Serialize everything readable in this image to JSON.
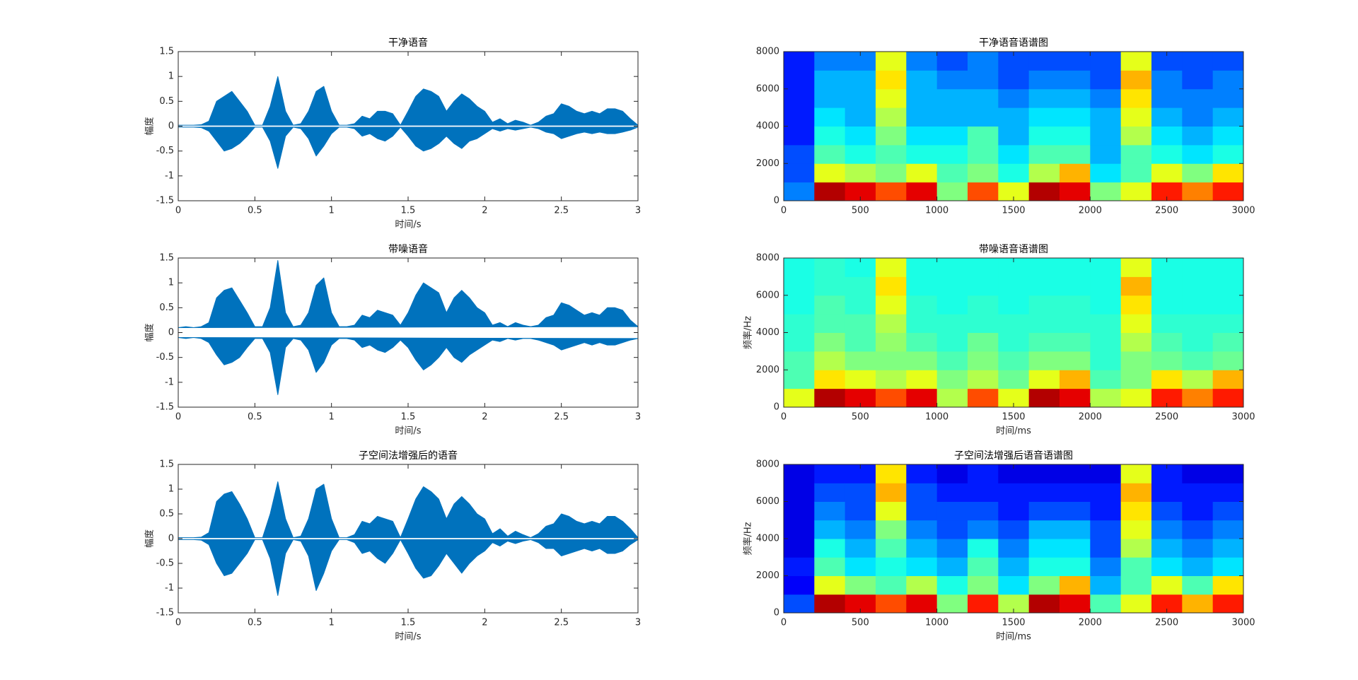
{
  "chart_data": [
    {
      "type": "area",
      "title": "干净语音",
      "xlabel": "时间/s",
      "ylabel": "幅度",
      "x": [
        0,
        0.05,
        0.1,
        0.15,
        0.2,
        0.25,
        0.3,
        0.35,
        0.4,
        0.45,
        0.5,
        0.55,
        0.6,
        0.65,
        0.7,
        0.75,
        0.8,
        0.85,
        0.9,
        0.95,
        1,
        1.05,
        1.1,
        1.15,
        1.2,
        1.25,
        1.3,
        1.35,
        1.4,
        1.45,
        1.5,
        1.55,
        1.6,
        1.65,
        1.7,
        1.75,
        1.8,
        1.85,
        1.9,
        1.95,
        2,
        2.05,
        2.1,
        2.15,
        2.2,
        2.25,
        2.3,
        2.35,
        2.4,
        2.45,
        2.5,
        2.55,
        2.6,
        2.65,
        2.7,
        2.75,
        2.8,
        2.85,
        2.9,
        2.95,
        3
      ],
      "series": [
        {
          "color": "#0072bd",
          "values": [
            0.02,
            0.02,
            0.02,
            0.03,
            0.1,
            0.5,
            0.6,
            0.7,
            0.5,
            0.3,
            0.02,
            0.02,
            0.4,
            1.0,
            0.3,
            0.02,
            0.05,
            0.3,
            0.7,
            0.8,
            0.3,
            0.02,
            0.02,
            0.05,
            0.2,
            0.15,
            0.3,
            0.3,
            0.25,
            0.02,
            0.3,
            0.6,
            0.75,
            0.7,
            0.6,
            0.3,
            0.5,
            0.65,
            0.55,
            0.4,
            0.3,
            0.08,
            0.15,
            0.05,
            0.12,
            0.08,
            0.02,
            0.08,
            0.2,
            0.25,
            0.45,
            0.4,
            0.3,
            0.25,
            0.3,
            0.25,
            0.35,
            0.35,
            0.3,
            0.15,
            0.02
          ]
        },
        {
          "color": "#0072bd",
          "values": [
            -0.02,
            -0.02,
            -0.02,
            -0.03,
            -0.1,
            -0.3,
            -0.5,
            -0.45,
            -0.35,
            -0.2,
            -0.02,
            -0.02,
            -0.3,
            -0.85,
            -0.2,
            -0.02,
            -0.05,
            -0.25,
            -0.6,
            -0.4,
            -0.15,
            -0.02,
            -0.02,
            -0.05,
            -0.2,
            -0.15,
            -0.25,
            -0.3,
            -0.2,
            -0.02,
            -0.2,
            -0.4,
            -0.5,
            -0.45,
            -0.35,
            -0.2,
            -0.35,
            -0.45,
            -0.3,
            -0.25,
            -0.15,
            -0.05,
            -0.1,
            -0.05,
            -0.08,
            -0.05,
            -0.02,
            -0.05,
            -0.12,
            -0.15,
            -0.25,
            -0.2,
            -0.15,
            -0.12,
            -0.15,
            -0.12,
            -0.15,
            -0.15,
            -0.12,
            -0.08,
            -0.02
          ]
        }
      ],
      "xlim": [
        0,
        3
      ],
      "xticks": [
        0,
        0.5,
        1,
        1.5,
        2,
        2.5,
        3
      ],
      "ylim": [
        -1.5,
        1.5
      ],
      "yticks": [
        -1.5,
        -1,
        -0.5,
        0,
        0.5,
        1,
        1.5
      ]
    },
    {
      "type": "heatmap",
      "title": "干净语音语谱图",
      "colormap": "jet",
      "x": [
        100,
        300,
        500,
        700,
        900,
        1100,
        1300,
        1500,
        1700,
        1900,
        2100,
        2300,
        2500,
        2700,
        2900
      ],
      "y": [
        500,
        1500,
        2500,
        3500,
        4500,
        5500,
        6500,
        7500
      ],
      "values": [
        [
          0.25,
          0.2,
          0.2,
          0.15,
          0.15,
          0.15,
          0.15,
          0.15
        ],
        [
          0.95,
          0.6,
          0.45,
          0.4,
          0.35,
          0.3,
          0.3,
          0.25
        ],
        [
          0.9,
          0.55,
          0.4,
          0.35,
          0.3,
          0.3,
          0.3,
          0.25
        ],
        [
          0.8,
          0.5,
          0.45,
          0.5,
          0.55,
          0.6,
          0.65,
          0.6
        ],
        [
          0.9,
          0.6,
          0.4,
          0.35,
          0.3,
          0.3,
          0.3,
          0.25
        ],
        [
          0.5,
          0.45,
          0.4,
          0.35,
          0.3,
          0.3,
          0.25,
          0.2
        ],
        [
          0.8,
          0.5,
          0.45,
          0.45,
          0.3,
          0.3,
          0.25,
          0.25
        ],
        [
          0.6,
          0.4,
          0.35,
          0.3,
          0.3,
          0.25,
          0.2,
          0.2
        ],
        [
          0.95,
          0.55,
          0.45,
          0.4,
          0.35,
          0.3,
          0.25,
          0.2
        ],
        [
          0.9,
          0.7,
          0.45,
          0.4,
          0.35,
          0.3,
          0.25,
          0.2
        ],
        [
          0.5,
          0.35,
          0.3,
          0.3,
          0.3,
          0.25,
          0.2,
          0.2
        ],
        [
          0.6,
          0.45,
          0.45,
          0.55,
          0.6,
          0.65,
          0.7,
          0.6
        ],
        [
          0.85,
          0.6,
          0.4,
          0.35,
          0.3,
          0.25,
          0.25,
          0.2
        ],
        [
          0.75,
          0.5,
          0.35,
          0.3,
          0.25,
          0.25,
          0.2,
          0.2
        ],
        [
          0.85,
          0.65,
          0.4,
          0.35,
          0.3,
          0.25,
          0.25,
          0.2
        ]
      ],
      "xlim": [
        0,
        3000
      ],
      "xticks": [
        0,
        500,
        1000,
        1500,
        2000,
        2500,
        3000
      ],
      "ylim": [
        0,
        8000
      ],
      "yticks": [
        0,
        2000,
        4000,
        6000,
        8000
      ]
    },
    {
      "type": "area",
      "title": "带噪语音",
      "xlabel": "时间/s",
      "ylabel": "幅度",
      "x": [
        0,
        0.05,
        0.1,
        0.15,
        0.2,
        0.25,
        0.3,
        0.35,
        0.4,
        0.45,
        0.5,
        0.55,
        0.6,
        0.65,
        0.7,
        0.75,
        0.8,
        0.85,
        0.9,
        0.95,
        1,
        1.05,
        1.1,
        1.15,
        1.2,
        1.25,
        1.3,
        1.35,
        1.4,
        1.45,
        1.5,
        1.55,
        1.6,
        1.65,
        1.7,
        1.75,
        1.8,
        1.85,
        1.9,
        1.95,
        2,
        2.05,
        2.1,
        2.15,
        2.2,
        2.25,
        2.3,
        2.35,
        2.4,
        2.45,
        2.5,
        2.55,
        2.6,
        2.65,
        2.7,
        2.75,
        2.8,
        2.85,
        2.9,
        2.95,
        3
      ],
      "series": [
        {
          "color": "#0072bd",
          "values": [
            0.1,
            0.12,
            0.1,
            0.12,
            0.2,
            0.7,
            0.85,
            0.9,
            0.65,
            0.4,
            0.12,
            0.12,
            0.5,
            1.45,
            0.4,
            0.12,
            0.15,
            0.4,
            0.95,
            1.1,
            0.4,
            0.12,
            0.12,
            0.15,
            0.35,
            0.3,
            0.45,
            0.4,
            0.35,
            0.15,
            0.4,
            0.75,
            1.0,
            0.9,
            0.8,
            0.4,
            0.7,
            0.85,
            0.7,
            0.5,
            0.4,
            0.15,
            0.2,
            0.12,
            0.2,
            0.15,
            0.12,
            0.15,
            0.3,
            0.35,
            0.6,
            0.55,
            0.45,
            0.35,
            0.4,
            0.35,
            0.5,
            0.5,
            0.45,
            0.25,
            0.12
          ]
        },
        {
          "color": "#0072bd",
          "values": [
            -0.1,
            -0.12,
            -0.1,
            -0.12,
            -0.2,
            -0.45,
            -0.65,
            -0.6,
            -0.5,
            -0.3,
            -0.12,
            -0.12,
            -0.4,
            -1.25,
            -0.3,
            -0.12,
            -0.15,
            -0.35,
            -0.8,
            -0.6,
            -0.25,
            -0.12,
            -0.12,
            -0.15,
            -0.3,
            -0.25,
            -0.35,
            -0.4,
            -0.3,
            -0.15,
            -0.3,
            -0.55,
            -0.75,
            -0.65,
            -0.5,
            -0.3,
            -0.5,
            -0.6,
            -0.45,
            -0.35,
            -0.25,
            -0.15,
            -0.18,
            -0.12,
            -0.15,
            -0.12,
            -0.12,
            -0.15,
            -0.2,
            -0.25,
            -0.35,
            -0.3,
            -0.25,
            -0.2,
            -0.25,
            -0.2,
            -0.25,
            -0.25,
            -0.2,
            -0.15,
            -0.12
          ]
        }
      ],
      "xlim": [
        0,
        3
      ],
      "xticks": [
        0,
        0.5,
        1,
        1.5,
        2,
        2.5,
        3
      ],
      "ylim": [
        -1.5,
        1.5
      ],
      "yticks": [
        -1.5,
        -1,
        -0.5,
        0,
        0.5,
        1,
        1.5
      ]
    },
    {
      "type": "heatmap",
      "title": "带噪语音语谱图",
      "xlabel": "时间/ms",
      "ylabel": "频率/Hz",
      "colormap": "jet",
      "x": [
        100,
        300,
        500,
        700,
        900,
        1100,
        1300,
        1500,
        1700,
        1900,
        2100,
        2300,
        2500,
        2700,
        2900
      ],
      "y": [
        500,
        1500,
        2500,
        3500,
        4500,
        5500,
        6500,
        7500
      ],
      "values": [
        [
          0.6,
          0.45,
          0.45,
          0.42,
          0.42,
          0.4,
          0.4,
          0.4
        ],
        [
          0.95,
          0.65,
          0.55,
          0.5,
          0.45,
          0.45,
          0.42,
          0.42
        ],
        [
          0.9,
          0.6,
          0.5,
          0.45,
          0.45,
          0.42,
          0.42,
          0.4
        ],
        [
          0.8,
          0.55,
          0.5,
          0.52,
          0.55,
          0.6,
          0.65,
          0.6
        ],
        [
          0.9,
          0.6,
          0.5,
          0.45,
          0.42,
          0.42,
          0.4,
          0.4
        ],
        [
          0.55,
          0.5,
          0.45,
          0.42,
          0.42,
          0.4,
          0.4,
          0.4
        ],
        [
          0.8,
          0.55,
          0.5,
          0.48,
          0.42,
          0.42,
          0.4,
          0.4
        ],
        [
          0.6,
          0.48,
          0.45,
          0.42,
          0.42,
          0.4,
          0.4,
          0.4
        ],
        [
          0.95,
          0.6,
          0.5,
          0.45,
          0.42,
          0.42,
          0.4,
          0.4
        ],
        [
          0.9,
          0.7,
          0.5,
          0.45,
          0.42,
          0.42,
          0.4,
          0.4
        ],
        [
          0.55,
          0.45,
          0.42,
          0.42,
          0.42,
          0.4,
          0.4,
          0.4
        ],
        [
          0.6,
          0.5,
          0.5,
          0.55,
          0.6,
          0.65,
          0.7,
          0.6
        ],
        [
          0.85,
          0.65,
          0.48,
          0.45,
          0.42,
          0.4,
          0.4,
          0.4
        ],
        [
          0.75,
          0.55,
          0.45,
          0.42,
          0.42,
          0.4,
          0.4,
          0.4
        ],
        [
          0.85,
          0.7,
          0.48,
          0.45,
          0.42,
          0.4,
          0.4,
          0.4
        ]
      ],
      "xlim": [
        0,
        3000
      ],
      "xticks": [
        0,
        500,
        1000,
        1500,
        2000,
        2500,
        3000
      ],
      "ylim": [
        0,
        8000
      ],
      "yticks": [
        0,
        2000,
        4000,
        6000,
        8000
      ]
    },
    {
      "type": "area",
      "title": "子空间法增强后的语音",
      "xlabel": "时间/s",
      "ylabel": "幅度",
      "x": [
        0,
        0.05,
        0.1,
        0.15,
        0.2,
        0.25,
        0.3,
        0.35,
        0.4,
        0.45,
        0.5,
        0.55,
        0.6,
        0.65,
        0.7,
        0.75,
        0.8,
        0.85,
        0.9,
        0.95,
        1,
        1.05,
        1.1,
        1.15,
        1.2,
        1.25,
        1.3,
        1.35,
        1.4,
        1.45,
        1.5,
        1.55,
        1.6,
        1.65,
        1.7,
        1.75,
        1.8,
        1.85,
        1.9,
        1.95,
        2,
        2.05,
        2.1,
        2.15,
        2.2,
        2.25,
        2.3,
        2.35,
        2.4,
        2.45,
        2.5,
        2.55,
        2.6,
        2.65,
        2.7,
        2.75,
        2.8,
        2.85,
        2.9,
        2.95,
        3
      ],
      "series": [
        {
          "color": "#0072bd",
          "values": [
            0.02,
            0.02,
            0.02,
            0.03,
            0.12,
            0.75,
            0.9,
            0.95,
            0.7,
            0.4,
            0.02,
            0.02,
            0.5,
            1.15,
            0.4,
            0.02,
            0.05,
            0.4,
            1.0,
            1.1,
            0.4,
            0.02,
            0.02,
            0.08,
            0.35,
            0.3,
            0.45,
            0.4,
            0.35,
            0.02,
            0.4,
            0.8,
            1.05,
            0.95,
            0.8,
            0.4,
            0.7,
            0.85,
            0.7,
            0.5,
            0.4,
            0.1,
            0.2,
            0.05,
            0.15,
            0.08,
            0.02,
            0.1,
            0.25,
            0.3,
            0.5,
            0.45,
            0.35,
            0.3,
            0.35,
            0.3,
            0.45,
            0.45,
            0.35,
            0.2,
            0.02
          ]
        },
        {
          "color": "#0072bd",
          "values": [
            -0.02,
            -0.02,
            -0.02,
            -0.03,
            -0.12,
            -0.5,
            -0.75,
            -0.7,
            -0.5,
            -0.3,
            -0.02,
            -0.02,
            -0.4,
            -1.15,
            -0.3,
            -0.02,
            -0.05,
            -0.35,
            -1.05,
            -0.7,
            -0.25,
            -0.02,
            -0.02,
            -0.08,
            -0.3,
            -0.25,
            -0.4,
            -0.5,
            -0.3,
            -0.02,
            -0.3,
            -0.6,
            -0.8,
            -0.75,
            -0.55,
            -0.3,
            -0.5,
            -0.7,
            -0.5,
            -0.35,
            -0.25,
            -0.08,
            -0.15,
            -0.05,
            -0.1,
            -0.05,
            -0.02,
            -0.08,
            -0.2,
            -0.2,
            -0.35,
            -0.3,
            -0.25,
            -0.2,
            -0.25,
            -0.2,
            -0.3,
            -0.3,
            -0.25,
            -0.12,
            -0.02
          ]
        }
      ],
      "xlim": [
        0,
        3
      ],
      "xticks": [
        0,
        0.5,
        1,
        1.5,
        2,
        2.5,
        3
      ],
      "ylim": [
        -1.5,
        1.5
      ],
      "yticks": [
        -1.5,
        -1,
        -0.5,
        0,
        0.5,
        1,
        1.5
      ]
    },
    {
      "type": "heatmap",
      "title": "子空间法增强后语音语谱图",
      "xlabel": "时间/ms",
      "ylabel": "频率/Hz",
      "colormap": "jet",
      "x": [
        100,
        300,
        500,
        700,
        900,
        1100,
        1300,
        1500,
        1700,
        1900,
        2100,
        2300,
        2500,
        2700,
        2900
      ],
      "y": [
        500,
        1500,
        2500,
        3500,
        4500,
        5500,
        6500,
        7500
      ],
      "values": [
        [
          0.2,
          0.12,
          0.15,
          0.1,
          0.1,
          0.1,
          0.1,
          0.1
        ],
        [
          0.95,
          0.6,
          0.45,
          0.4,
          0.3,
          0.25,
          0.2,
          0.15
        ],
        [
          0.9,
          0.5,
          0.35,
          0.3,
          0.25,
          0.2,
          0.2,
          0.15
        ],
        [
          0.8,
          0.45,
          0.4,
          0.45,
          0.5,
          0.6,
          0.7,
          0.65
        ],
        [
          0.9,
          0.55,
          0.35,
          0.3,
          0.25,
          0.2,
          0.2,
          0.15
        ],
        [
          0.5,
          0.4,
          0.3,
          0.25,
          0.2,
          0.2,
          0.15,
          0.1
        ],
        [
          0.85,
          0.5,
          0.45,
          0.4,
          0.25,
          0.2,
          0.15,
          0.15
        ],
        [
          0.55,
          0.35,
          0.3,
          0.25,
          0.2,
          0.15,
          0.15,
          0.1
        ],
        [
          0.95,
          0.5,
          0.4,
          0.35,
          0.3,
          0.2,
          0.15,
          0.1
        ],
        [
          0.9,
          0.7,
          0.4,
          0.35,
          0.3,
          0.2,
          0.15,
          0.1
        ],
        [
          0.45,
          0.3,
          0.25,
          0.2,
          0.2,
          0.15,
          0.15,
          0.1
        ],
        [
          0.6,
          0.45,
          0.45,
          0.55,
          0.6,
          0.65,
          0.7,
          0.6
        ],
        [
          0.85,
          0.6,
          0.35,
          0.3,
          0.25,
          0.2,
          0.15,
          0.15
        ],
        [
          0.7,
          0.45,
          0.3,
          0.25,
          0.2,
          0.15,
          0.15,
          0.1
        ],
        [
          0.85,
          0.65,
          0.35,
          0.3,
          0.25,
          0.2,
          0.15,
          0.1
        ]
      ],
      "xlim": [
        0,
        3000
      ],
      "xticks": [
        0,
        500,
        1000,
        1500,
        2000,
        2500,
        3000
      ],
      "ylim": [
        0,
        8000
      ],
      "yticks": [
        0,
        2000,
        4000,
        6000,
        8000
      ]
    }
  ]
}
